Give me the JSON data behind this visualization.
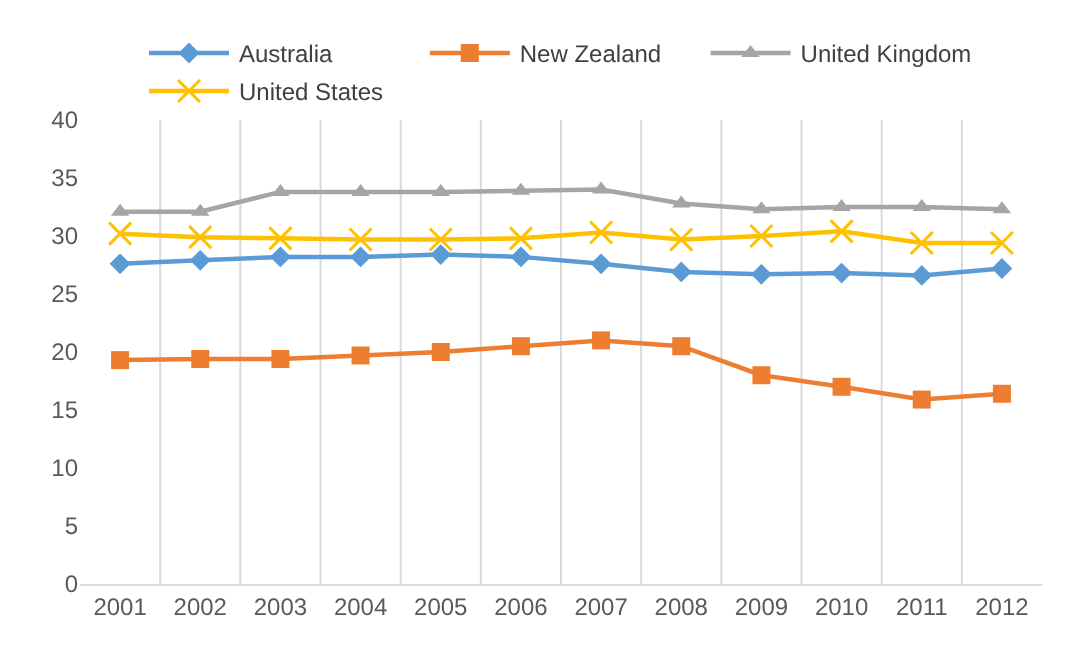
{
  "chart_data": {
    "type": "line",
    "categories": [
      "2001",
      "2002",
      "2003",
      "2004",
      "2005",
      "2006",
      "2007",
      "2008",
      "2009",
      "2010",
      "2011",
      "2012"
    ],
    "series": [
      {
        "name": "Australia",
        "color": "#5b9bd5",
        "marker": "diamond",
        "values": [
          27.6,
          27.9,
          28.2,
          28.2,
          28.4,
          28.2,
          27.6,
          26.9,
          26.7,
          26.8,
          26.6,
          27.2
        ]
      },
      {
        "name": "New Zealand",
        "color": "#ed7d31",
        "marker": "square",
        "values": [
          19.3,
          19.4,
          19.4,
          19.7,
          20.0,
          20.5,
          21.0,
          20.5,
          18.0,
          17.0,
          15.9,
          16.4
        ]
      },
      {
        "name": "United Kingdom",
        "color": "#a5a5a5",
        "marker": "triangle",
        "values": [
          32.1,
          32.1,
          33.8,
          33.8,
          33.8,
          33.9,
          34.0,
          32.8,
          32.3,
          32.5,
          32.5,
          32.3
        ]
      },
      {
        "name": "United States",
        "color": "#ffc000",
        "marker": "cross",
        "values": [
          30.2,
          29.9,
          29.8,
          29.7,
          29.7,
          29.8,
          30.3,
          29.7,
          30.0,
          30.4,
          29.4,
          29.4
        ]
      }
    ],
    "ylim": [
      0,
      40
    ],
    "yticks": [
      0,
      5,
      10,
      15,
      20,
      25,
      30,
      35,
      40
    ],
    "grid": "x",
    "legend": "top"
  }
}
